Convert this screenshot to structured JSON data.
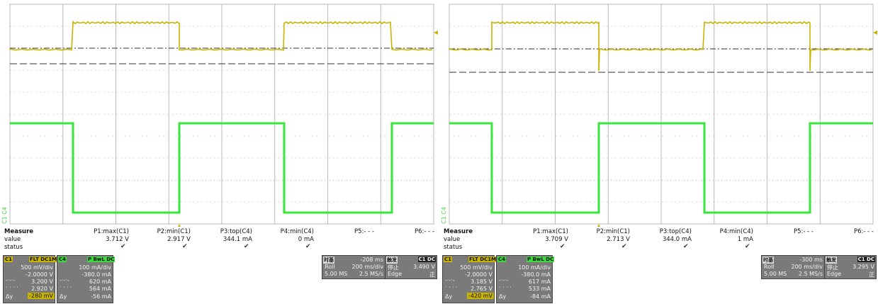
{
  "colors": {
    "c1": "#c8b400",
    "c4": "#39e639",
    "grid": "#b8b8b8",
    "ref": "#333333"
  },
  "left": {
    "channel_label": "C1 C4",
    "measure": {
      "title": "Measure",
      "row_value": "value",
      "row_status": "status",
      "cols": [
        {
          "label": "P1:max(C1)",
          "value": "3.712 V",
          "status": "✔"
        },
        {
          "label": "P2:min(C1)",
          "value": "2.917 V",
          "status": "✔"
        },
        {
          "label": "P3:top(C4)",
          "value": "344.1 mA",
          "status": "✔"
        },
        {
          "label": "P4:min(C4)",
          "value": "0 mA",
          "status": "✔"
        },
        {
          "label": "P5:- - -",
          "value": "",
          "status": ""
        },
        {
          "label": "P6:- - -",
          "value": "",
          "status": ""
        }
      ]
    },
    "c1": {
      "name": "C1",
      "tags": "FLT DC1M",
      "scale": "500 mV/div",
      "offset": "-2.0000 V",
      "cursor1": "3.200 V",
      "cursor2": "2.920 V",
      "delta": "-280 mV",
      "delta_label": "Δy"
    },
    "c4": {
      "name": "C4",
      "tags": "P BwL DC",
      "scale": "100 mA/div",
      "offset": "-380.0 mA",
      "cursor1": "620 mA",
      "cursor2": "564 mA",
      "delta": "-56 mA",
      "delta_label": "Δy"
    },
    "timebase": {
      "label": "时基",
      "position": "-208 ms",
      "mode": "Roll",
      "scale": "200 ms/div",
      "memory": "5.00 MS",
      "rate": "2.5 MS/s"
    },
    "trigger": {
      "label": "触发",
      "channel": "C1 DC",
      "state": "停止",
      "level": "3.490 V",
      "type": "Edge",
      "slope": "正"
    }
  },
  "right": {
    "channel_label": "C1 C4",
    "measure": {
      "title": "Measure",
      "row_value": "value",
      "row_status": "status",
      "cols": [
        {
          "label": "P1:max(C1)",
          "value": "3.709 V",
          "status": "✔"
        },
        {
          "label": "P2:min(C1)",
          "value": "2.713 V",
          "status": "✔"
        },
        {
          "label": "P3:top(C4)",
          "value": "344.0 mA",
          "status": "✔"
        },
        {
          "label": "P4:min(C4)",
          "value": "1 mA",
          "status": "✔"
        },
        {
          "label": "P5:- - -",
          "value": "",
          "status": ""
        },
        {
          "label": "P6:- - -",
          "value": "",
          "status": ""
        }
      ]
    },
    "c1": {
      "name": "C1",
      "tags": "FLT DC1M",
      "scale": "500 mV/div",
      "offset": "-2.0000 V",
      "cursor1": "3.185 V",
      "cursor2": "2.765 V",
      "delta": "-420 mV",
      "delta_label": "Δy"
    },
    "c4": {
      "name": "C4",
      "tags": "P BwL DC",
      "scale": "100 mA/div",
      "offset": "-380.0 mA",
      "cursor1": "617 mA",
      "cursor2": "533 mA",
      "delta": "-84 mA",
      "delta_label": "Δy"
    },
    "timebase": {
      "label": "时基",
      "position": "-300 ms",
      "mode": "Roll",
      "scale": "200 ms/div",
      "memory": "5.00 MS",
      "rate": "2.5 MS/s"
    },
    "trigger": {
      "label": "触发",
      "channel": "C1 DC",
      "state": "停止",
      "level": "3.295 V",
      "type": "Edge",
      "slope": "正"
    }
  }
}
